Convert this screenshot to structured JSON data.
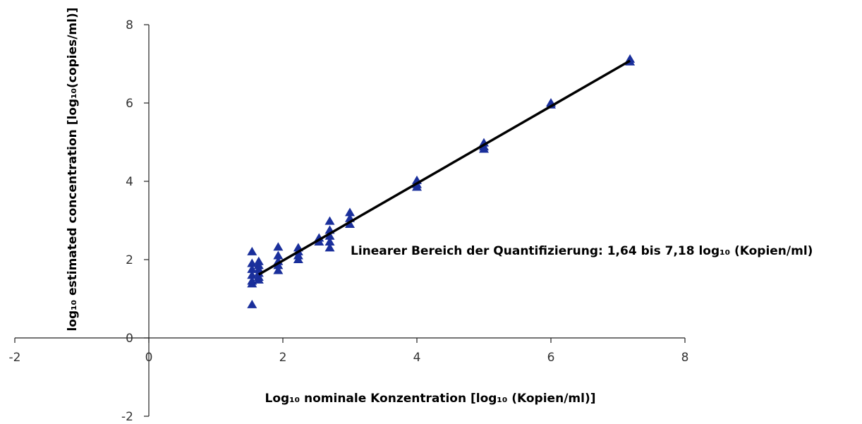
{
  "chart_data": {
    "type": "scatter",
    "xlabel": "Log₁₀ nominale Konzentration [log₁₀ (Kopien/ml)]",
    "ylabel": "log₁₀ estimated concentration [log₁₀(copies/ml)]",
    "annotation": "Linearer Bereich der Quantifizierung: 1,64 bis 7,18 log₁₀ (Kopien/ml)",
    "xlim": [
      -2,
      8
    ],
    "ylim": [
      -2,
      8
    ],
    "x_ticks": [
      "-2",
      "0",
      "2",
      "4",
      "6",
      "8"
    ],
    "y_ticks": [
      "-2",
      "0",
      "2",
      "4",
      "6",
      "8"
    ],
    "grid": false,
    "legend": "none",
    "marker": "triangle",
    "marker_color": "#1a2f9b",
    "line_color": "#000000",
    "series": [
      {
        "points": [
          [
            1.54,
            2.2
          ],
          [
            1.54,
            1.9
          ],
          [
            1.54,
            1.75
          ],
          [
            1.54,
            1.6
          ],
          [
            1.54,
            1.45
          ],
          [
            1.54,
            1.38
          ],
          [
            1.54,
            0.85
          ],
          [
            1.64,
            1.95
          ],
          [
            1.64,
            1.85
          ],
          [
            1.64,
            1.75
          ],
          [
            1.64,
            1.65
          ],
          [
            1.64,
            1.55
          ],
          [
            1.64,
            1.48
          ],
          [
            1.93,
            2.32
          ],
          [
            1.93,
            2.1
          ],
          [
            1.93,
            1.95
          ],
          [
            1.93,
            1.85
          ],
          [
            1.93,
            1.72
          ],
          [
            2.23,
            2.3
          ],
          [
            2.23,
            2.2
          ],
          [
            2.23,
            2.1
          ],
          [
            2.23,
            2.0
          ],
          [
            2.54,
            2.55
          ],
          [
            2.54,
            2.45
          ],
          [
            2.7,
            2.98
          ],
          [
            2.7,
            2.75
          ],
          [
            2.7,
            2.6
          ],
          [
            2.7,
            2.45
          ],
          [
            2.7,
            2.3
          ],
          [
            3.0,
            3.2
          ],
          [
            3.0,
            3.05
          ],
          [
            3.0,
            2.9
          ],
          [
            4.0,
            4.02
          ],
          [
            4.0,
            3.92
          ],
          [
            4.0,
            3.85
          ],
          [
            5.0,
            4.98
          ],
          [
            5.0,
            4.88
          ],
          [
            5.0,
            4.82
          ],
          [
            6.0,
            6.0
          ],
          [
            6.0,
            5.95
          ],
          [
            7.18,
            7.12
          ],
          [
            7.18,
            7.05
          ]
        ]
      }
    ],
    "fit_line": {
      "x": [
        1.64,
        7.18
      ],
      "y": [
        1.62,
        7.08
      ]
    }
  }
}
